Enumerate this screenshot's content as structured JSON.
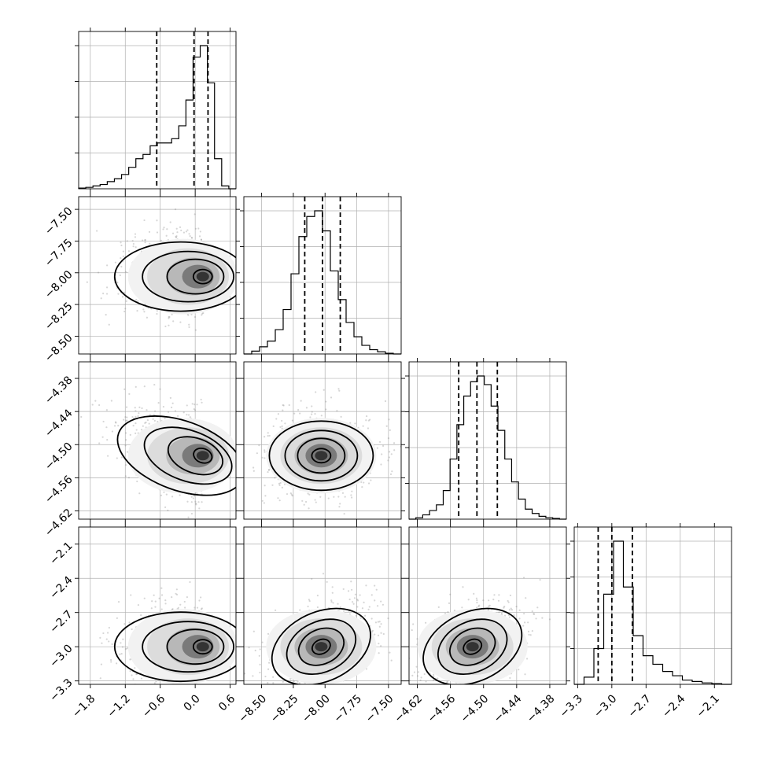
{
  "chart_data": {
    "type": "corner",
    "grid": true,
    "parameters": [
      {
        "ticks": [
          -1.8,
          -1.2,
          -0.6,
          0.0,
          0.6
        ],
        "tick_labels": [
          "−1.8",
          "−1.2",
          "−0.6",
          "0.0",
          "0.6"
        ],
        "range": [
          -2.0,
          0.7
        ],
        "quantiles": [
          -0.66,
          -0.02,
          0.22
        ],
        "peak": 0.13,
        "hist": [
          0.005,
          0.01,
          0.02,
          0.03,
          0.05,
          0.07,
          0.1,
          0.15,
          0.21,
          0.24,
          0.3,
          0.32,
          0.32,
          0.35,
          0.44,
          0.62,
          0.92,
          1.0,
          0.74,
          0.21,
          0.02,
          0.0
        ]
      },
      {
        "ticks": [
          -8.5,
          -8.25,
          -8.0,
          -7.75,
          -7.5
        ],
        "tick_labels": [
          "−8.50",
          "−8.25",
          "−8.00",
          "−7.75",
          "−7.50"
        ],
        "range": [
          -8.64,
          -7.4
        ],
        "quantiles": [
          -8.16,
          -8.02,
          -7.88
        ],
        "peak": -8.03,
        "hist": [
          0.0,
          0.02,
          0.05,
          0.09,
          0.17,
          0.31,
          0.56,
          0.82,
          0.96,
          1.0,
          0.86,
          0.58,
          0.38,
          0.22,
          0.12,
          0.06,
          0.03,
          0.015,
          0.005,
          0.0
        ]
      },
      {
        "ticks": [
          -4.62,
          -4.56,
          -4.5,
          -4.44,
          -4.38
        ],
        "tick_labels": [
          "−4.62",
          "−4.56",
          "−4.50",
          "−4.44",
          "−4.38"
        ],
        "range": [
          -4.635,
          -4.35
        ],
        "quantiles": [
          -4.545,
          -4.512,
          -4.475
        ],
        "peak": -4.52,
        "hist": [
          0.0,
          0.01,
          0.03,
          0.06,
          0.1,
          0.2,
          0.42,
          0.66,
          0.86,
          0.96,
          1.0,
          0.94,
          0.79,
          0.62,
          0.42,
          0.26,
          0.14,
          0.07,
          0.04,
          0.02,
          0.01,
          0.005,
          0.0
        ]
      },
      {
        "ticks": [
          -3.3,
          -3.0,
          -2.7,
          -2.4,
          -2.1
        ],
        "tick_labels": [
          "−3.3",
          "−3.0",
          "−2.7",
          "−2.4",
          "−2.1"
        ],
        "range": [
          -3.33,
          -1.95
        ],
        "quantiles": [
          -3.12,
          -3.0,
          -2.82
        ],
        "peak": -3.0,
        "hist": [
          0.0,
          0.05,
          0.25,
          0.63,
          1.0,
          0.68,
          0.34,
          0.2,
          0.14,
          0.09,
          0.06,
          0.03,
          0.02,
          0.01,
          0.005,
          0.0
        ]
      }
    ]
  }
}
